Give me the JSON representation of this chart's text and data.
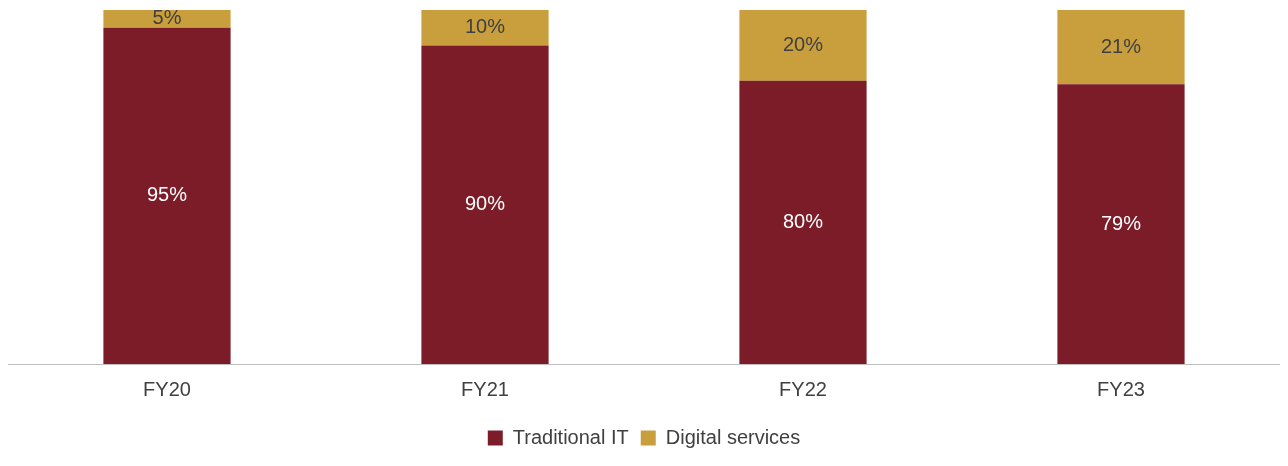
{
  "chart_data": {
    "type": "bar",
    "stacked": true,
    "categories": [
      "FY20",
      "FY21",
      "FY22",
      "FY23"
    ],
    "series": [
      {
        "name": "Traditional IT",
        "color": "#7b1c28",
        "values": [
          95,
          90,
          80,
          79
        ],
        "value_labels": [
          "95%",
          "90%",
          "80%",
          "79%"
        ]
      },
      {
        "name": "Digital services",
        "color": "#c99e3c",
        "values": [
          5,
          10,
          20,
          21
        ],
        "value_labels": [
          "5%",
          "10%",
          "20%",
          "21%"
        ]
      }
    ],
    "legend": "bottom",
    "grid": false
  }
}
